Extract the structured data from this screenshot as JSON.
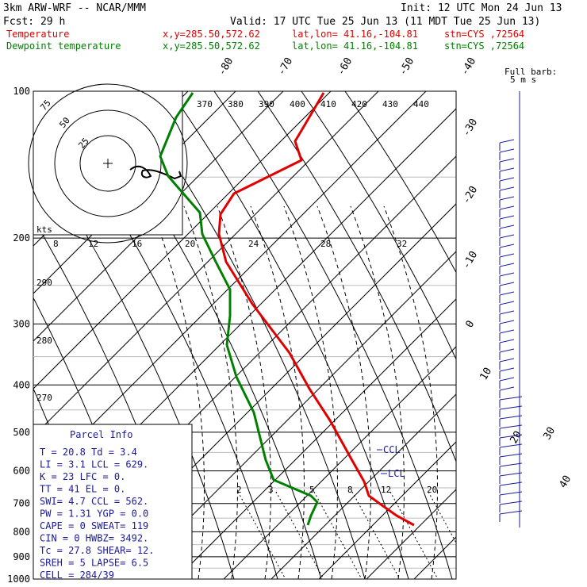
{
  "header": {
    "model": "3km ARW-WRF -- NCAR/MMM",
    "init": "Init: 12 UTC Mon 24 Jun 13",
    "fcst": "Fcst:    29 h",
    "valid": "Valid: 17 UTC Tue 25 Jun 13 (11 MDT Tue 25 Jun 13)",
    "temp_label": "Temperature",
    "dew_label": "Dewpoint temperature",
    "xy": "x,y=285.50,572.62",
    "latlon": "lat,lon= 41.16,-104.81",
    "stn": "stn=CYS ,72564"
  },
  "chart_data": {
    "type": "line",
    "title": "",
    "ylabel": "",
    "pressure_ticks": [
      100,
      200,
      300,
      400,
      500,
      600,
      700,
      800,
      900,
      1000
    ],
    "pressure_tick_labels": [
      "100",
      "200",
      "300",
      "400",
      "500",
      "600",
      "700",
      "800",
      "900",
      "1000"
    ],
    "y_scale": "log",
    "temp_isotherm_labels": [
      "-80",
      "-70",
      "-60",
      "-50",
      "-40",
      "-30",
      "-20",
      "-10",
      "0",
      "10",
      "20",
      "30",
      "40"
    ],
    "theta_labels_top": [
      "370",
      "380",
      "390",
      "400",
      "410",
      "420",
      "430",
      "440"
    ],
    "theta_labels_left": [
      "290",
      "280",
      "270"
    ],
    "mixing_ratio_labels": [
      "2",
      "3",
      "5",
      "8",
      "12",
      "20"
    ],
    "hodograph": {
      "ring_labels": [
        "25",
        "50",
        "75"
      ],
      "units": "kts",
      "speed_labels": [
        "8",
        "12",
        "16",
        "20",
        "24",
        "28",
        "32"
      ]
    },
    "barb_legend": "Full barb:",
    "barb_legend2": "5 m s",
    "ccl_label": "CCL",
    "lcl_label": "LCL",
    "series": [
      {
        "name": "Temperature",
        "color": "#e00000",
        "points": [
          [
            408,
            117
          ],
          [
            378,
            168
          ],
          [
            372,
            178
          ],
          [
            380,
            202
          ],
          [
            295,
            244
          ],
          [
            278,
            270
          ],
          [
            276,
            295
          ],
          [
            285,
            330
          ],
          [
            318,
            383
          ],
          [
            365,
            445
          ],
          [
            390,
            490
          ],
          [
            416,
            530
          ],
          [
            442,
            577
          ],
          [
            459,
            607
          ],
          [
            465,
            625
          ],
          [
            483,
            638
          ],
          [
            500,
            650
          ],
          [
            522,
            662
          ]
        ]
      },
      {
        "name": "Dewpoint temperature",
        "color": "#008000",
        "points": [
          [
            243,
            117
          ],
          [
            222,
            148
          ],
          [
            202,
            197
          ],
          [
            212,
            222
          ],
          [
            225,
            237
          ],
          [
            252,
            268
          ],
          [
            255,
            295
          ],
          [
            272,
            330
          ],
          [
            290,
            365
          ],
          [
            290,
            398
          ],
          [
            286,
            435
          ],
          [
            298,
            475
          ],
          [
            320,
            520
          ],
          [
            335,
            580
          ],
          [
            345,
            605
          ],
          [
            392,
            625
          ],
          [
            400,
            633
          ],
          [
            392,
            650
          ],
          [
            388,
            662
          ]
        ]
      }
    ]
  },
  "parcel_info": {
    "title": "Parcel Info",
    "rows": [
      "T  =    20.8  Td =   3.4",
      "LI =     3.1  LCL =  629.",
      "K  =      23  LFC =    0.",
      "TT =      41  EL =     0.",
      "SWI=     4.7  CCL =  562.",
      "PW =    1.31  YGP =   0.0",
      "CAPE =     0  SWEAT=  119",
      "CIN =      0  HWBZ= 3492.",
      "Tc  =   27.8  SHEAR=  12.",
      "SREH =     5  LAPSE=  6.5",
      "CELL = 284/39"
    ]
  }
}
